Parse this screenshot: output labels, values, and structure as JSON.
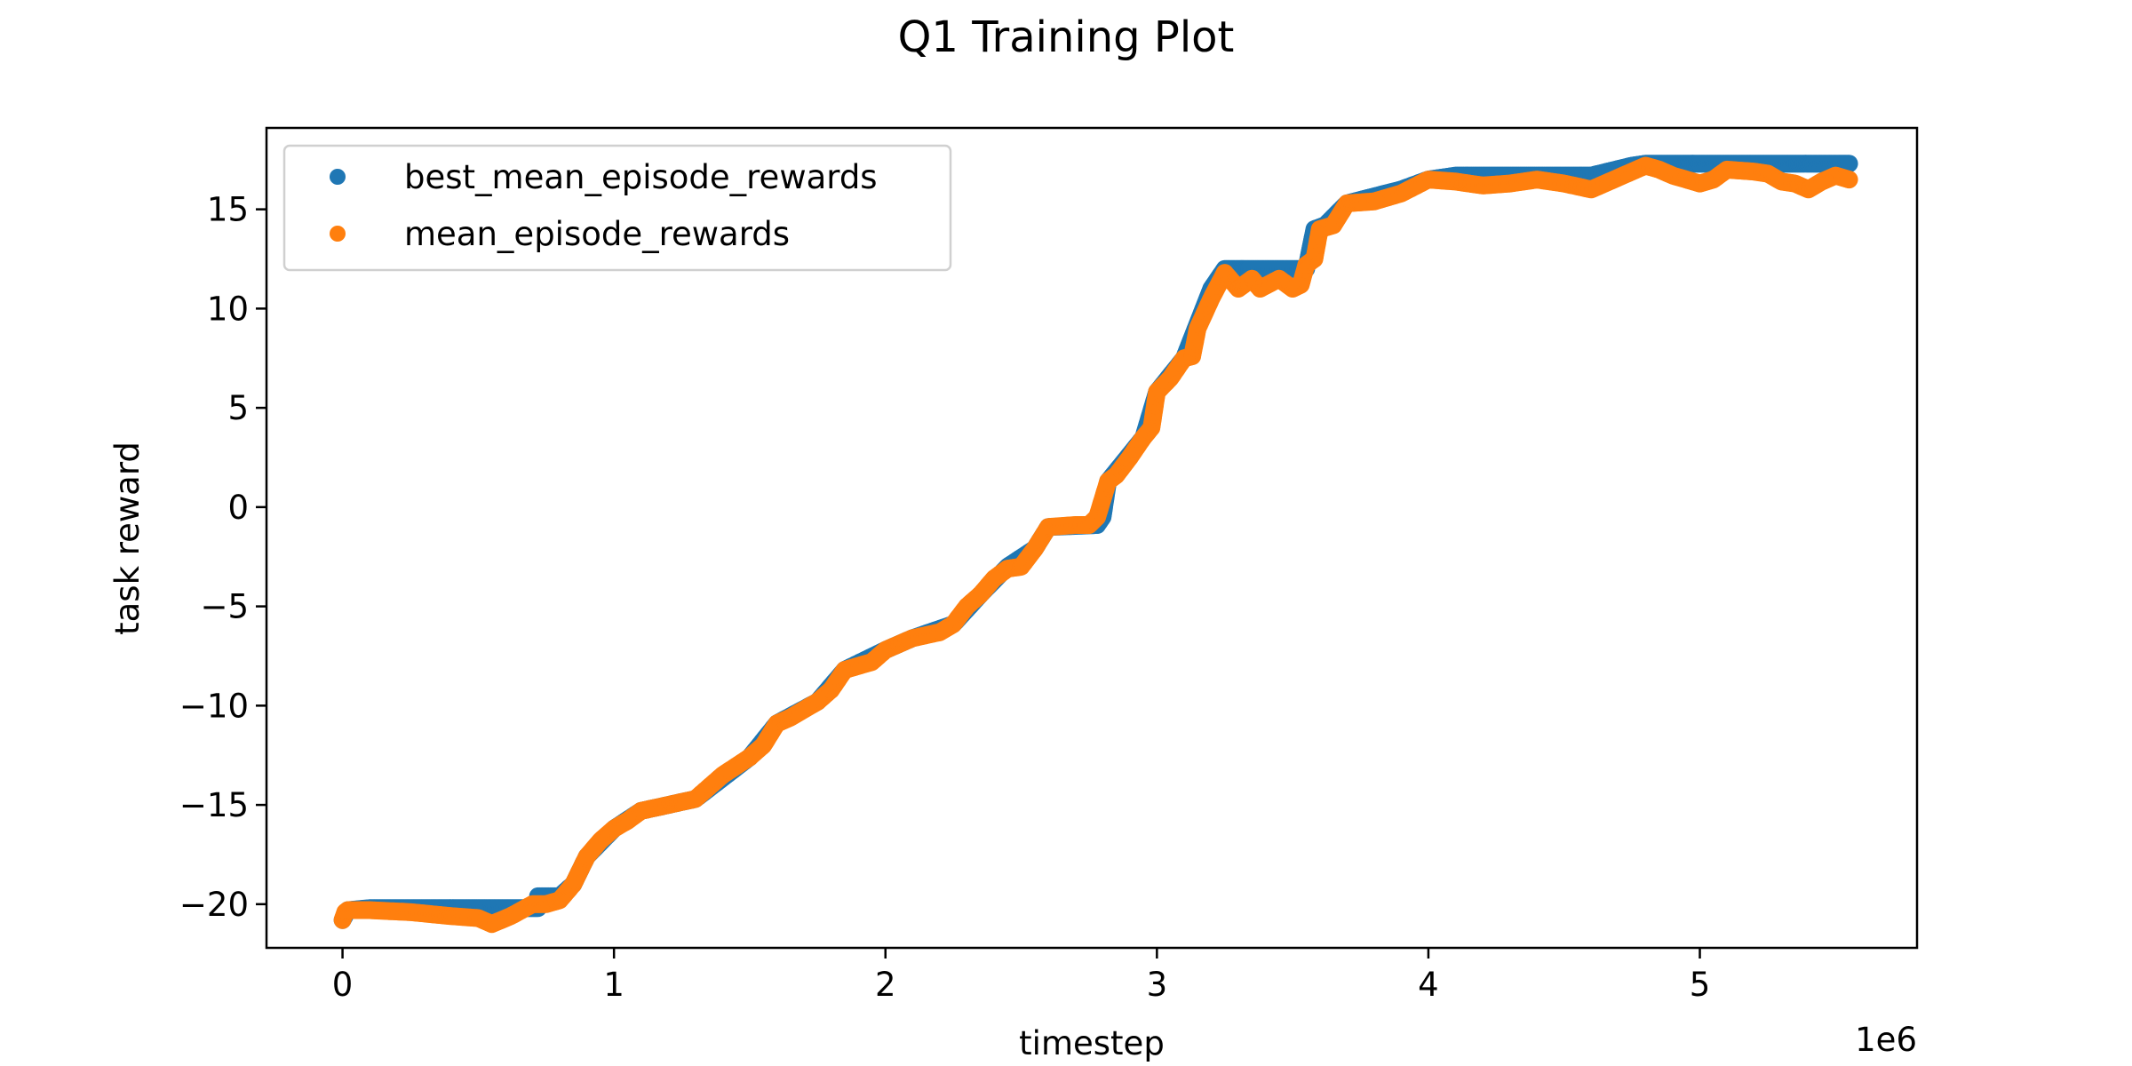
{
  "chart_data": {
    "type": "scatter",
    "title": "Q1 Training Plot",
    "xlabel": "timestep",
    "ylabel": "task reward",
    "x_offset_label": "1e6",
    "xlim": [
      -0.28,
      5.8
    ],
    "ylim": [
      -22.2,
      19.1
    ],
    "xticks": [
      0,
      1,
      2,
      3,
      4,
      5
    ],
    "yticks": [
      -20,
      -15,
      -10,
      -5,
      0,
      5,
      10,
      15
    ],
    "x_unit_scale": 1000000,
    "grid": false,
    "legend_position": "upper-left",
    "series": [
      {
        "name": "best_mean_episode_rewards",
        "color": "#1f77b4",
        "marker": "circle",
        "points": [
          [
            0.0,
            -20.8
          ],
          [
            0.02,
            -20.3
          ],
          [
            0.1,
            -20.2
          ],
          [
            0.5,
            -20.2
          ],
          [
            0.72,
            -20.2
          ],
          [
            0.72,
            -19.6
          ],
          [
            0.8,
            -19.6
          ],
          [
            0.85,
            -19.0
          ],
          [
            0.9,
            -17.6
          ],
          [
            1.0,
            -16.2
          ],
          [
            1.1,
            -15.3
          ],
          [
            1.3,
            -14.7
          ],
          [
            1.5,
            -12.6
          ],
          [
            1.6,
            -10.9
          ],
          [
            1.75,
            -9.8
          ],
          [
            1.85,
            -8.2
          ],
          [
            2.0,
            -7.2
          ],
          [
            2.1,
            -6.6
          ],
          [
            2.25,
            -5.9
          ],
          [
            2.35,
            -4.4
          ],
          [
            2.45,
            -3.0
          ],
          [
            2.55,
            -2.1
          ],
          [
            2.6,
            -1.0
          ],
          [
            2.78,
            -0.9
          ],
          [
            2.8,
            -0.5
          ],
          [
            2.82,
            1.3
          ],
          [
            2.95,
            3.5
          ],
          [
            3.0,
            5.8
          ],
          [
            3.1,
            7.5
          ],
          [
            3.2,
            11.0
          ],
          [
            3.25,
            12.0
          ],
          [
            3.55,
            12.0
          ],
          [
            3.58,
            14.0
          ],
          [
            3.62,
            14.2
          ],
          [
            3.7,
            15.3
          ],
          [
            3.9,
            16.0
          ],
          [
            4.0,
            16.5
          ],
          [
            4.1,
            16.7
          ],
          [
            4.6,
            16.7
          ],
          [
            4.75,
            17.2
          ],
          [
            4.8,
            17.3
          ],
          [
            5.0,
            17.3
          ],
          [
            5.2,
            17.3
          ],
          [
            5.4,
            17.3
          ],
          [
            5.55,
            17.3
          ]
        ]
      },
      {
        "name": "mean_episode_rewards",
        "color": "#ff7f0e",
        "marker": "circle",
        "points": [
          [
            0.0,
            -20.8
          ],
          [
            0.01,
            -20.4
          ],
          [
            0.02,
            -20.3
          ],
          [
            0.1,
            -20.3
          ],
          [
            0.25,
            -20.4
          ],
          [
            0.4,
            -20.6
          ],
          [
            0.5,
            -20.7
          ],
          [
            0.55,
            -21.0
          ],
          [
            0.62,
            -20.6
          ],
          [
            0.7,
            -20.0
          ],
          [
            0.75,
            -20.0
          ],
          [
            0.8,
            -19.8
          ],
          [
            0.85,
            -19.0
          ],
          [
            0.9,
            -17.6
          ],
          [
            0.95,
            -16.8
          ],
          [
            1.0,
            -16.2
          ],
          [
            1.05,
            -15.8
          ],
          [
            1.1,
            -15.3
          ],
          [
            1.2,
            -15.0
          ],
          [
            1.3,
            -14.7
          ],
          [
            1.4,
            -13.5
          ],
          [
            1.5,
            -12.6
          ],
          [
            1.55,
            -12.0
          ],
          [
            1.6,
            -10.9
          ],
          [
            1.65,
            -10.6
          ],
          [
            1.75,
            -9.8
          ],
          [
            1.8,
            -9.2
          ],
          [
            1.85,
            -8.2
          ],
          [
            1.95,
            -7.8
          ],
          [
            2.0,
            -7.2
          ],
          [
            2.1,
            -6.6
          ],
          [
            2.2,
            -6.3
          ],
          [
            2.25,
            -5.9
          ],
          [
            2.3,
            -5.0
          ],
          [
            2.35,
            -4.4
          ],
          [
            2.4,
            -3.6
          ],
          [
            2.45,
            -3.1
          ],
          [
            2.5,
            -3.0
          ],
          [
            2.55,
            -2.1
          ],
          [
            2.6,
            -1.0
          ],
          [
            2.7,
            -0.9
          ],
          [
            2.75,
            -0.9
          ],
          [
            2.78,
            -0.5
          ],
          [
            2.82,
            1.3
          ],
          [
            2.85,
            1.6
          ],
          [
            2.9,
            2.5
          ],
          [
            2.95,
            3.5
          ],
          [
            2.98,
            4.0
          ],
          [
            3.0,
            5.8
          ],
          [
            3.05,
            6.5
          ],
          [
            3.1,
            7.5
          ],
          [
            3.13,
            7.6
          ],
          [
            3.15,
            9.0
          ],
          [
            3.2,
            10.5
          ],
          [
            3.25,
            11.8
          ],
          [
            3.3,
            11.0
          ],
          [
            3.35,
            11.5
          ],
          [
            3.38,
            11.0
          ],
          [
            3.45,
            11.5
          ],
          [
            3.5,
            11.0
          ],
          [
            3.53,
            11.2
          ],
          [
            3.55,
            12.2
          ],
          [
            3.58,
            12.5
          ],
          [
            3.6,
            14.0
          ],
          [
            3.65,
            14.2
          ],
          [
            3.7,
            15.3
          ],
          [
            3.8,
            15.4
          ],
          [
            3.9,
            15.8
          ],
          [
            4.0,
            16.5
          ],
          [
            4.1,
            16.4
          ],
          [
            4.2,
            16.2
          ],
          [
            4.3,
            16.3
          ],
          [
            4.4,
            16.5
          ],
          [
            4.5,
            16.3
          ],
          [
            4.6,
            16.0
          ],
          [
            4.7,
            16.6
          ],
          [
            4.8,
            17.2
          ],
          [
            4.85,
            17.0
          ],
          [
            4.9,
            16.7
          ],
          [
            5.0,
            16.3
          ],
          [
            5.05,
            16.5
          ],
          [
            5.1,
            17.0
          ],
          [
            5.2,
            16.9
          ],
          [
            5.25,
            16.8
          ],
          [
            5.3,
            16.4
          ],
          [
            5.35,
            16.3
          ],
          [
            5.4,
            16.0
          ],
          [
            5.45,
            16.4
          ],
          [
            5.5,
            16.7
          ],
          [
            5.55,
            16.5
          ]
        ]
      }
    ]
  }
}
